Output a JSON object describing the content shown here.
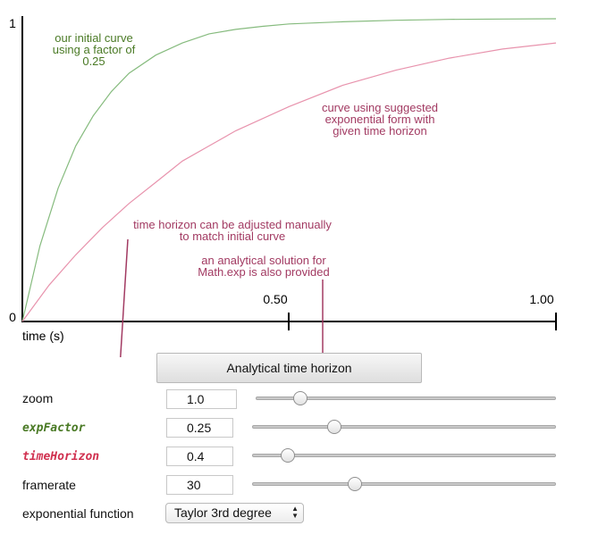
{
  "chart_data": {
    "type": "line",
    "xlabel": "time (s)",
    "x_ticks": [
      "0.50",
      "1.00"
    ],
    "y_ticks": [
      "0",
      "1"
    ],
    "xlim": [
      0,
      1
    ],
    "ylim": [
      0,
      1
    ],
    "series": [
      {
        "color": "#86bb7e",
        "x": [
          0,
          0.033,
          0.067,
          0.1,
          0.133,
          0.167,
          0.2,
          0.25,
          0.3,
          0.35,
          0.4,
          0.45,
          0.5,
          0.6,
          0.7,
          0.8,
          0.9,
          1.0
        ],
        "y": [
          0,
          0.25,
          0.44,
          0.58,
          0.68,
          0.76,
          0.82,
          0.88,
          0.92,
          0.95,
          0.965,
          0.975,
          0.983,
          0.99,
          0.995,
          0.998,
          0.999,
          1.0
        ]
      },
      {
        "color": "#e893ad",
        "x": [
          0,
          0.05,
          0.1,
          0.15,
          0.2,
          0.25,
          0.3,
          0.35,
          0.4,
          0.5,
          0.6,
          0.7,
          0.8,
          0.9,
          1.0
        ],
        "y": [
          0,
          0.12,
          0.22,
          0.31,
          0.39,
          0.46,
          0.53,
          0.58,
          0.63,
          0.71,
          0.78,
          0.83,
          0.87,
          0.9,
          0.92
        ]
      }
    ],
    "annotations": {
      "initial_curve": [
        "our initial curve",
        "using a factor of",
        "0.25"
      ],
      "suggested_curve": [
        "curve using suggested",
        "exponential form with",
        "given time horizon"
      ],
      "horizon_note": [
        "time horizon can be adjusted manually",
        "to match initial curve"
      ],
      "analytical_note": [
        "an analytical solution for",
        "Math.exp is also provided"
      ]
    }
  },
  "button": {
    "label": "Analytical time horizon"
  },
  "controls": [
    {
      "label": "zoom",
      "value": "1.0",
      "slider": 0.13
    },
    {
      "label": "expFactor",
      "value": "0.25",
      "slider": 0.26
    },
    {
      "label": "timeHorizon",
      "value": "0.4",
      "slider": 0.1
    },
    {
      "label": "framerate",
      "value": "30",
      "slider": 0.33
    }
  ],
  "exponential_function": {
    "label": "exponential function",
    "selected": "Taylor 3rd degree"
  },
  "colors": {
    "green_text": "#4a7a25",
    "pink_text": "#a23a62",
    "green_curve": "#86bb7e",
    "pink_curve": "#e893ad",
    "leader": "#a23a62"
  }
}
